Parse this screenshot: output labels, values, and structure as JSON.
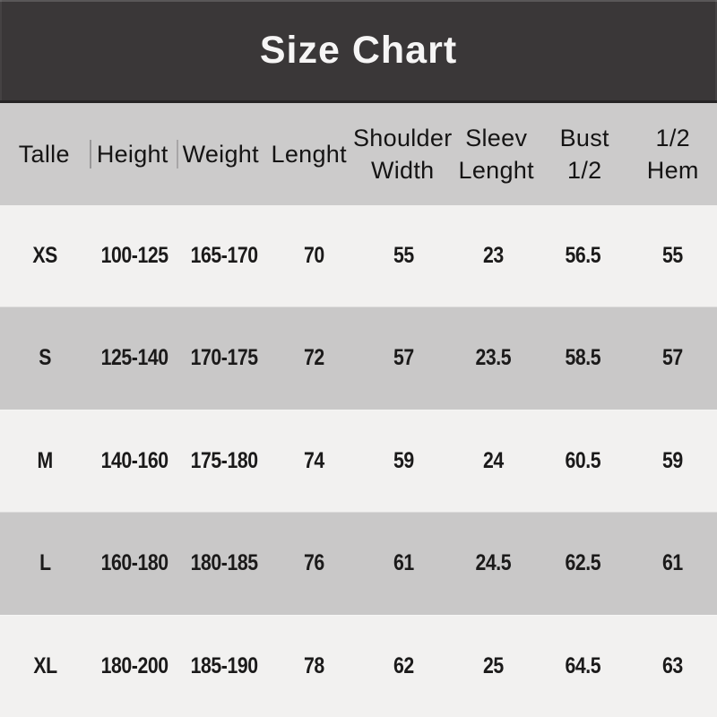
{
  "colors": {
    "title_bg": "#3a3738",
    "title_text": "#f6f5f5",
    "header_bg": "#cccbcb",
    "row_light": "#f2f1f0",
    "row_dark": "#c9c8c8",
    "header_text": "#151414",
    "cell_text": "#1b1a1a"
  },
  "chart_data": {
    "type": "table",
    "title": "Size Chart",
    "columns": [
      {
        "label": "Talle",
        "lines": [
          "Talle"
        ]
      },
      {
        "label": "Height",
        "lines": [
          "Height"
        ]
      },
      {
        "label": "Weight",
        "lines": [
          "Weight"
        ]
      },
      {
        "label": "Lenght",
        "lines": [
          "Lenght"
        ]
      },
      {
        "label": "Shoulder Width",
        "lines": [
          "Shoulder",
          "Width"
        ]
      },
      {
        "label": "Sleev Lenght",
        "lines": [
          "Sleev",
          "Lenght"
        ]
      },
      {
        "label": "Bust 1/2",
        "lines": [
          "Bust",
          "1/2"
        ]
      },
      {
        "label": "1/2 Hem",
        "lines": [
          "1/2",
          "Hem"
        ]
      }
    ],
    "rows": [
      {
        "size": "XS",
        "values": [
          "100-125",
          "165-170",
          "70",
          "55",
          "23",
          "56.5",
          "55"
        ]
      },
      {
        "size": "S",
        "values": [
          "125-140",
          "170-175",
          "72",
          "57",
          "23.5",
          "58.5",
          "57"
        ]
      },
      {
        "size": "M",
        "values": [
          "140-160",
          "175-180",
          "74",
          "59",
          "24",
          "60.5",
          "59"
        ]
      },
      {
        "size": "L",
        "values": [
          "160-180",
          "180-185",
          "76",
          "61",
          "24.5",
          "62.5",
          "61"
        ]
      },
      {
        "size": "XL",
        "values": [
          "180-200",
          "185-190",
          "78",
          "62",
          "25",
          "64.5",
          "63"
        ]
      }
    ]
  }
}
